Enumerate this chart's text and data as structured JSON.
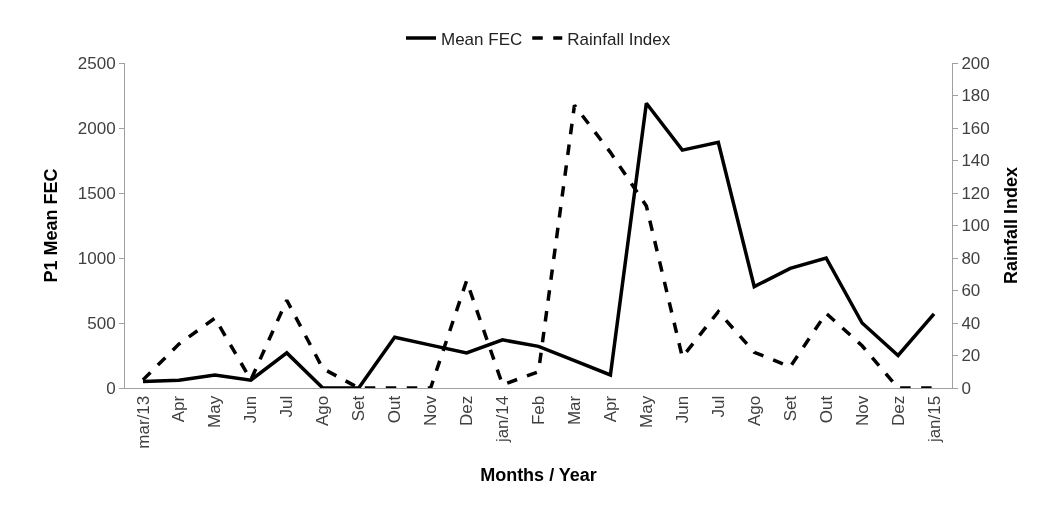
{
  "chart_data": {
    "type": "line",
    "xlabel": "Months / Year",
    "ylabel": "P1 Mean FEC",
    "y2label": "Rainfall Index",
    "categories": [
      "mar/13",
      "Apr",
      "May",
      "Jun",
      "Jul",
      "Ago",
      "Set",
      "Out",
      "Nov",
      "Dez",
      "jan/14",
      "Feb",
      "Mar",
      "Apr",
      "May",
      "Jun",
      "Jul",
      "Ago",
      "Set",
      "Out",
      "Nov",
      "Dez",
      "jan/15"
    ],
    "series": [
      {
        "name": "Mean FEC",
        "color": "#000000",
        "line_style": "solid",
        "values": [
          50,
          60,
          100,
          60,
          270,
          0,
          0,
          390,
          330,
          270,
          370,
          320,
          210,
          100,
          2190,
          1830,
          1890,
          780,
          920,
          1000,
          500,
          250,
          570
        ]
      },
      {
        "name": "Rainfall Index",
        "color": "#000000",
        "line_style": "dashed",
        "axis": "y2",
        "values": [
          5,
          27,
          43,
          5,
          54,
          12,
          0,
          0,
          0,
          66,
          2,
          10,
          174,
          145,
          112,
          19,
          47,
          22,
          13,
          46,
          26,
          0,
          0
        ]
      }
    ],
    "ylim": [
      0,
      2500
    ],
    "yticks": [
      0,
      500,
      1000,
      1500,
      2000,
      2500
    ],
    "y2lim": [
      0,
      200
    ],
    "y2ticks": [
      0,
      20,
      40,
      60,
      80,
      100,
      120,
      140,
      160,
      180,
      200
    ],
    "grid": false,
    "legend": "top",
    "marker": "none"
  }
}
